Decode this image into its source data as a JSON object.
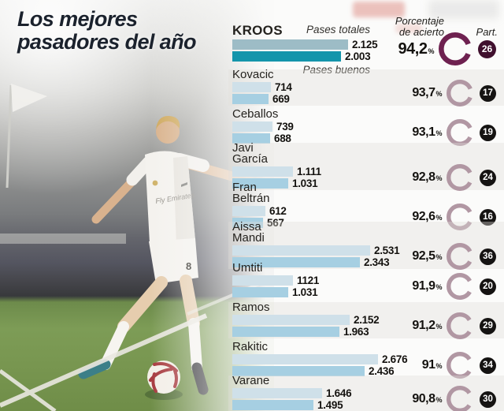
{
  "title": {
    "line1": "Los mejores",
    "line2": "pasadores del año"
  },
  "headers": {
    "pases_totales": "Pases totales",
    "pases_buenos": "Pases buenos",
    "porcentaje_line1": "Porcentaje",
    "porcentaje_line2": "de acierto",
    "partidos": "Part."
  },
  "photo": {
    "jersey_sponsor": "Fly Emirates",
    "shorts_number": "8"
  },
  "colors": {
    "bar_totales": "#cfe0e9",
    "bar_buenos": "#a6cfe2",
    "bar_totales_highlight": "#9dbcc6",
    "bar_buenos_highlight": "#1495ab",
    "donut": "#b197a3",
    "donut_highlight": "#6e2150",
    "badge": "#151312",
    "badge_highlight": "#40102e",
    "title_text": "#1b222d"
  },
  "chart_data": {
    "type": "bar",
    "orientation": "horizontal",
    "title": "Los mejores pasadores del año",
    "series_labels": [
      "Pases totales",
      "Pases buenos"
    ],
    "value_axis_max": 2700,
    "players": [
      {
        "name": "KROOS",
        "highlight": true,
        "totales": 2125,
        "buenos": 2003,
        "totales_label": "2.125",
        "buenos_label": "2.003",
        "pct": 94.2,
        "pct_label": "94,2",
        "partidos": 26
      },
      {
        "name": "Kovacic",
        "highlight": false,
        "totales": 714,
        "buenos": 669,
        "totales_label": "714",
        "buenos_label": "669",
        "pct": 93.7,
        "pct_label": "93,7",
        "partidos": 17
      },
      {
        "name": "Ceballos",
        "highlight": false,
        "totales": 739,
        "buenos": 688,
        "totales_label": "739",
        "buenos_label": "688",
        "pct": 93.1,
        "pct_label": "93,1",
        "partidos": 19
      },
      {
        "name": "Javi\nGarcía",
        "highlight": false,
        "totales": 1111,
        "buenos": 1031,
        "totales_label": "1.111",
        "buenos_label": "1.031",
        "pct": 92.8,
        "pct_label": "92,8",
        "partidos": 24
      },
      {
        "name": "Fran\nBeltrán",
        "highlight": false,
        "totales": 612,
        "buenos": 567,
        "totales_label": "612",
        "buenos_label": "567",
        "pct": 92.6,
        "pct_label": "92,6",
        "partidos": 16
      },
      {
        "name": "Aissa\nMandi",
        "highlight": false,
        "totales": 2531,
        "buenos": 2343,
        "totales_label": "2.531",
        "buenos_label": "2.343",
        "pct": 92.5,
        "pct_label": "92,5",
        "partidos": 36
      },
      {
        "name": "Umtiti",
        "highlight": false,
        "totales": 1121,
        "buenos": 1031,
        "totales_label": "1121",
        "buenos_label": "1.031",
        "pct": 91.9,
        "pct_label": "91,9",
        "partidos": 20
      },
      {
        "name": "Ramos",
        "highlight": false,
        "totales": 2152,
        "buenos": 1963,
        "totales_label": "2.152",
        "buenos_label": "1.963",
        "pct": 91.2,
        "pct_label": "91,2",
        "partidos": 29
      },
      {
        "name": "Rakitic",
        "highlight": false,
        "totales": 2676,
        "buenos": 2436,
        "totales_label": "2.676",
        "buenos_label": "2.436",
        "pct": 91.0,
        "pct_label": "91",
        "partidos": 34
      },
      {
        "name": "Varane",
        "highlight": false,
        "totales": 1646,
        "buenos": 1495,
        "totales_label": "1.646",
        "buenos_label": "1.495",
        "pct": 90.8,
        "pct_label": "90,8",
        "partidos": 30
      }
    ]
  }
}
